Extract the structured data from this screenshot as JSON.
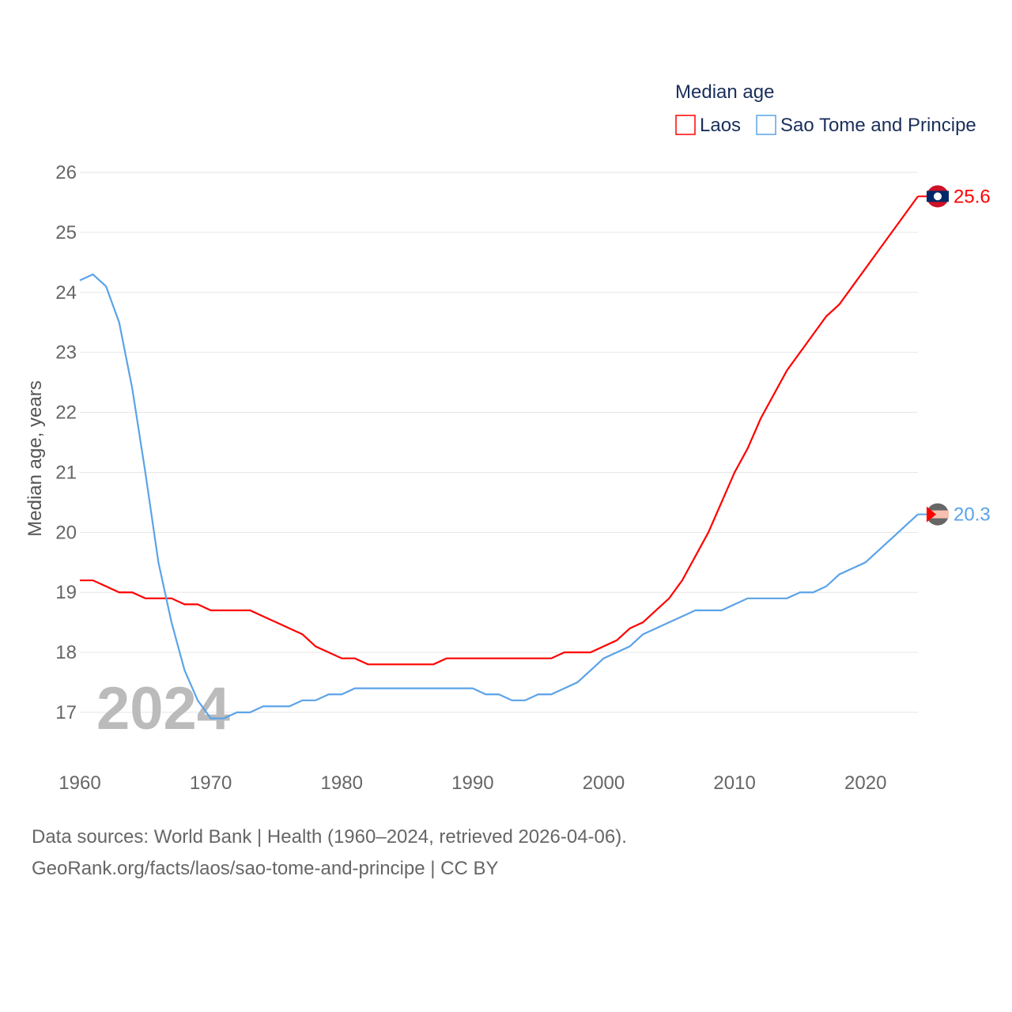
{
  "chart_data": {
    "type": "line",
    "legend_title": "Median age",
    "ylabel": "Median age, years",
    "xlim": [
      1960,
      2024
    ],
    "ylim": [
      16.9,
      26
    ],
    "yticks": [
      17,
      18,
      19,
      20,
      21,
      22,
      23,
      24,
      25,
      26
    ],
    "xticks": [
      1960,
      1970,
      1980,
      1990,
      2000,
      2010,
      2020
    ],
    "year_label": "2024",
    "legend_position": "top-right",
    "grid": true,
    "x_start": 1960,
    "series": [
      {
        "name": "Laos",
        "color": "#ff0000",
        "end_label": "25.6",
        "values": [
          19.2,
          19.2,
          19.1,
          19.0,
          19.0,
          18.9,
          18.9,
          18.9,
          18.8,
          18.8,
          18.7,
          18.7,
          18.7,
          18.7,
          18.6,
          18.5,
          18.4,
          18.3,
          18.1,
          18.0,
          17.9,
          17.9,
          17.8,
          17.8,
          17.8,
          17.8,
          17.8,
          17.8,
          17.9,
          17.9,
          17.9,
          17.9,
          17.9,
          17.9,
          17.9,
          17.9,
          17.9,
          18.0,
          18.0,
          18.0,
          18.1,
          18.2,
          18.4,
          18.5,
          18.7,
          18.9,
          19.2,
          19.6,
          20.0,
          20.5,
          21.0,
          21.4,
          21.9,
          22.3,
          22.7,
          23.0,
          23.3,
          23.6,
          23.8,
          24.1,
          24.4,
          24.7,
          25.0,
          25.3,
          25.6
        ]
      },
      {
        "name": "Sao Tome and Principe",
        "color": "#5ba3e8",
        "end_label": "20.3",
        "values": [
          24.2,
          24.3,
          24.1,
          23.5,
          22.4,
          21.0,
          19.5,
          18.5,
          17.7,
          17.2,
          16.9,
          16.9,
          17.0,
          17.0,
          17.1,
          17.1,
          17.1,
          17.2,
          17.2,
          17.3,
          17.3,
          17.4,
          17.4,
          17.4,
          17.4,
          17.4,
          17.4,
          17.4,
          17.4,
          17.4,
          17.4,
          17.3,
          17.3,
          17.2,
          17.2,
          17.3,
          17.3,
          17.4,
          17.5,
          17.7,
          17.9,
          18.0,
          18.1,
          18.3,
          18.4,
          18.5,
          18.6,
          18.7,
          18.7,
          18.7,
          18.8,
          18.9,
          18.9,
          18.9,
          18.9,
          19.0,
          19.0,
          19.1,
          19.3,
          19.4,
          19.5,
          19.7,
          19.9,
          20.1,
          20.3
        ]
      }
    ]
  },
  "footer": {
    "line1": "Data sources: World Bank | Health (1960–2024, retrieved 2026-04-06).",
    "line2": "GeoRank.org/facts/laos/sao-tome-and-principe | CC BY"
  }
}
